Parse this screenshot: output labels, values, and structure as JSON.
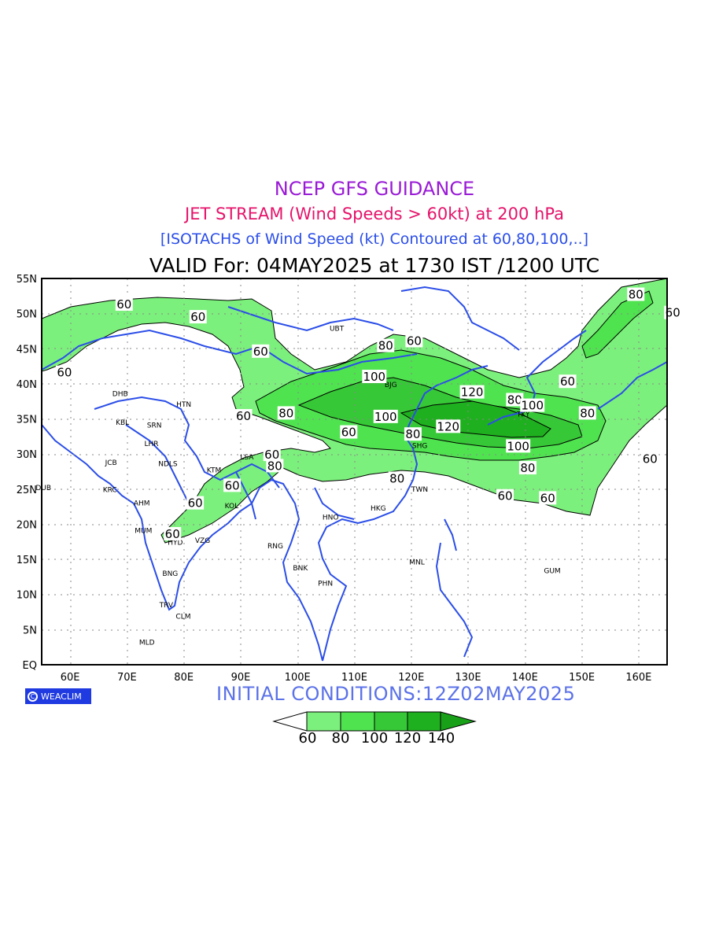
{
  "titles": {
    "line1": "NCEP GFS GUIDANCE",
    "line2": "JET STREAM (Wind Speeds > 60kt) at 200 hPa",
    "line3": "[ISOTACHS of Wind Speed (kt) Contoured at 60,80,100,..]",
    "line4": "VALID For: 04MAY2025 at 1730 IST /1200 UTC"
  },
  "initial_conditions": "INITIAL CONDITIONS:12Z02MAY2025",
  "logo_text": "WEACLIM",
  "axes": {
    "lat_labels": [
      "EQ",
      "5N",
      "10N",
      "15N",
      "20N",
      "25N",
      "30N",
      "35N",
      "40N",
      "45N",
      "50N",
      "55N"
    ],
    "lon_labels": [
      "60E",
      "70E",
      "80E",
      "90E",
      "100E",
      "110E",
      "120E",
      "130E",
      "140E",
      "150E",
      "160E"
    ]
  },
  "legend": {
    "labels": [
      "60",
      "80",
      "100",
      "120",
      "140"
    ],
    "colors": [
      "#ffffff",
      "#7cf07c",
      "#4fe34f",
      "#36c836",
      "#1fb01f",
      "#19a019"
    ]
  },
  "stations": [
    {
      "name": "UBT",
      "lon": 106.9,
      "lat": 47.9
    },
    {
      "name": "DHB",
      "lon": 68.8,
      "lat": 38.6
    },
    {
      "name": "HTN",
      "lon": 80.0,
      "lat": 37.1
    },
    {
      "name": "KBL",
      "lon": 69.2,
      "lat": 34.5
    },
    {
      "name": "SRN",
      "lon": 74.8,
      "lat": 34.1
    },
    {
      "name": "LHR",
      "lon": 74.3,
      "lat": 31.5
    },
    {
      "name": "JCB",
      "lon": 67.2,
      "lat": 28.8
    },
    {
      "name": "NDLS",
      "lon": 77.2,
      "lat": 28.6
    },
    {
      "name": "DUB",
      "lon": 55.3,
      "lat": 25.2
    },
    {
      "name": "KRC",
      "lon": 67.0,
      "lat": 24.9
    },
    {
      "name": "AHM",
      "lon": 72.6,
      "lat": 23.0
    },
    {
      "name": "KTM",
      "lon": 85.3,
      "lat": 27.7
    },
    {
      "name": "LSA",
      "lon": 91.1,
      "lat": 29.6
    },
    {
      "name": "KOL",
      "lon": 88.4,
      "lat": 22.6
    },
    {
      "name": "MUM",
      "lon": 72.9,
      "lat": 19.1
    },
    {
      "name": "HYD",
      "lon": 78.5,
      "lat": 17.4
    },
    {
      "name": "VZG",
      "lon": 83.3,
      "lat": 17.7
    },
    {
      "name": "BNG",
      "lon": 77.6,
      "lat": 13.0
    },
    {
      "name": "TRV",
      "lon": 76.9,
      "lat": 8.5
    },
    {
      "name": "CLM",
      "lon": 79.9,
      "lat": 6.9
    },
    {
      "name": "MLD",
      "lon": 73.5,
      "lat": 3.2
    },
    {
      "name": "RNG",
      "lon": 96.1,
      "lat": 16.9
    },
    {
      "name": "BNK",
      "lon": 100.5,
      "lat": 13.8
    },
    {
      "name": "PHN",
      "lon": 104.9,
      "lat": 11.6
    },
    {
      "name": "HNO",
      "lon": 105.8,
      "lat": 21.0
    },
    {
      "name": "HKG",
      "lon": 114.2,
      "lat": 22.3
    },
    {
      "name": "MNL",
      "lon": 121.0,
      "lat": 14.6
    },
    {
      "name": "TWN",
      "lon": 121.5,
      "lat": 25.0
    },
    {
      "name": "SHG",
      "lon": 121.5,
      "lat": 31.2
    },
    {
      "name": "BJG",
      "lon": 116.4,
      "lat": 39.9
    },
    {
      "name": "TKY",
      "lon": 139.7,
      "lat": 35.7
    },
    {
      "name": "GUM",
      "lon": 144.8,
      "lat": 13.4
    }
  ],
  "contour_labels": [
    {
      "text": "60",
      "lon": 69.5,
      "lat": 51.3
    },
    {
      "text": "60",
      "lon": 82.5,
      "lat": 49.5
    },
    {
      "text": "60",
      "lon": 59.0,
      "lat": 41.6
    },
    {
      "text": "60",
      "lon": 93.5,
      "lat": 44.6
    },
    {
      "text": "60",
      "lon": 90.5,
      "lat": 35.4
    },
    {
      "text": "80",
      "lon": 98.0,
      "lat": 35.8
    },
    {
      "text": "80",
      "lon": 115.5,
      "lat": 45.4
    },
    {
      "text": "60",
      "lon": 120.5,
      "lat": 46.1
    },
    {
      "text": "100",
      "lon": 113.5,
      "lat": 41.0
    },
    {
      "text": "100",
      "lon": 115.5,
      "lat": 35.3
    },
    {
      "text": "60",
      "lon": 109.0,
      "lat": 33.1
    },
    {
      "text": "80",
      "lon": 120.3,
      "lat": 32.8
    },
    {
      "text": "120",
      "lon": 130.7,
      "lat": 38.8
    },
    {
      "text": "120",
      "lon": 126.5,
      "lat": 33.9
    },
    {
      "text": "80",
      "lon": 138.2,
      "lat": 37.7
    },
    {
      "text": "100",
      "lon": 141.3,
      "lat": 36.9
    },
    {
      "text": "80",
      "lon": 151.0,
      "lat": 35.8
    },
    {
      "text": "100",
      "lon": 138.8,
      "lat": 31.1
    },
    {
      "text": "60",
      "lon": 95.5,
      "lat": 29.9
    },
    {
      "text": "80",
      "lon": 96.0,
      "lat": 28.3
    },
    {
      "text": "60",
      "lon": 88.5,
      "lat": 25.5
    },
    {
      "text": "80",
      "lon": 117.5,
      "lat": 26.5
    },
    {
      "text": "80",
      "lon": 140.5,
      "lat": 28.0
    },
    {
      "text": "60",
      "lon": 136.5,
      "lat": 24.0
    },
    {
      "text": "60",
      "lon": 144.0,
      "lat": 23.7
    },
    {
      "text": "60",
      "lon": 162.0,
      "lat": 29.3
    },
    {
      "text": "60",
      "lon": 147.5,
      "lat": 40.3
    },
    {
      "text": "80",
      "lon": 159.5,
      "lat": 52.7
    },
    {
      "text": "60",
      "lon": 166.0,
      "lat": 50.1
    },
    {
      "text": "60",
      "lon": 82.0,
      "lat": 23.0
    },
    {
      "text": "60",
      "lon": 78.0,
      "lat": 18.6
    }
  ]
}
